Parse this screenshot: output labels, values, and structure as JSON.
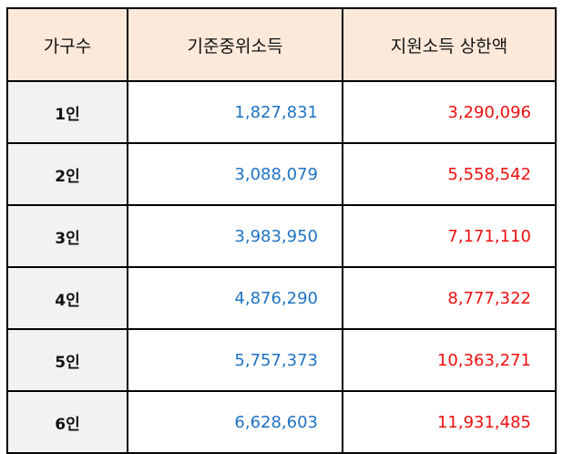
{
  "table": {
    "headers": [
      "가구수",
      "기준중위소득",
      "지원소득 상한액"
    ],
    "rows": [
      {
        "household": "1인",
        "median": "1,827,831",
        "limit": "3,290,096"
      },
      {
        "household": "2인",
        "median": "3,088,079",
        "limit": "5,558,542"
      },
      {
        "household": "3인",
        "median": "3,983,950",
        "limit": "7,171,110"
      },
      {
        "household": "4인",
        "median": "4,876,290",
        "limit": "8,777,322"
      },
      {
        "household": "5인",
        "median": "5,757,373",
        "limit": "10,363,271"
      },
      {
        "household": "6인",
        "median": "6,628,603",
        "limit": "11,931,485"
      }
    ]
  },
  "colors": {
    "header_bg": "#fde9d9",
    "label_bg": "#f2f2f2",
    "median_text": "#1f73c3",
    "limit_text": "#ee1010"
  }
}
